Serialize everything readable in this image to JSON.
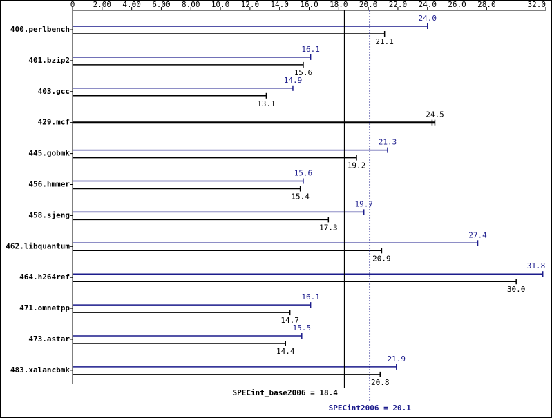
{
  "chart_data": {
    "type": "spec-bar",
    "categories": [
      "400.perlbench",
      "401.bzip2",
      "403.gcc",
      "429.mcf",
      "445.gobmk",
      "456.hmmer",
      "458.sjeng",
      "462.libquantum",
      "464.h264ref",
      "471.omnetpp",
      "473.astar",
      "483.xalancbmk"
    ],
    "series": [
      {
        "color": "#1c1c8c",
        "values": [
          24.0,
          16.1,
          14.9,
          null,
          21.3,
          15.6,
          19.7,
          27.4,
          31.8,
          16.1,
          15.5,
          21.9
        ],
        "value_labels": [
          "24.0",
          "16.1",
          "14.9",
          null,
          "21.3",
          "15.6",
          "19.7",
          "27.4",
          "31.8",
          "16.1",
          "15.5",
          "21.9"
        ]
      },
      {
        "color": "#000000",
        "values": [
          21.1,
          15.6,
          13.1,
          24.5,
          19.2,
          15.4,
          17.3,
          20.9,
          30.0,
          14.7,
          14.4,
          20.8
        ],
        "value_labels": [
          "21.1",
          "15.6",
          "13.1",
          "24.5",
          "19.2",
          "15.4",
          "17.3",
          "20.9",
          "30.0",
          "14.7",
          "14.4",
          "20.8"
        ]
      }
    ],
    "xlim": [
      0,
      32
    ],
    "xticks": [
      0,
      {
        "value": 2,
        "label": "2.00"
      },
      {
        "value": 4,
        "label": "4.00"
      },
      {
        "value": 6,
        "label": "6.00"
      },
      {
        "value": 8,
        "label": "8.00"
      },
      {
        "value": 10,
        "label": "10.0"
      },
      {
        "value": 12,
        "label": "12.0"
      },
      {
        "value": 14,
        "label": "14.0"
      },
      {
        "value": 16,
        "label": "16.0"
      },
      {
        "value": 18,
        "label": "18.0"
      },
      {
        "value": 20,
        "label": "20.0"
      },
      {
        "value": 22,
        "label": "22.0"
      },
      {
        "value": 24,
        "label": "24.0"
      },
      {
        "value": 26,
        "label": "26.0"
      },
      {
        "value": 28,
        "label": "28.0"
      },
      {
        "value": 32,
        "label": "32.0"
      }
    ],
    "reference_lines": [
      {
        "label": "SPECint_base2006 = 18.4",
        "value": 18.4,
        "color": "#000000",
        "style": "solid"
      },
      {
        "label": "SPECint2006 = 20.1",
        "value": 20.1,
        "color": "#1c1c8c",
        "style": "dotted"
      }
    ]
  }
}
